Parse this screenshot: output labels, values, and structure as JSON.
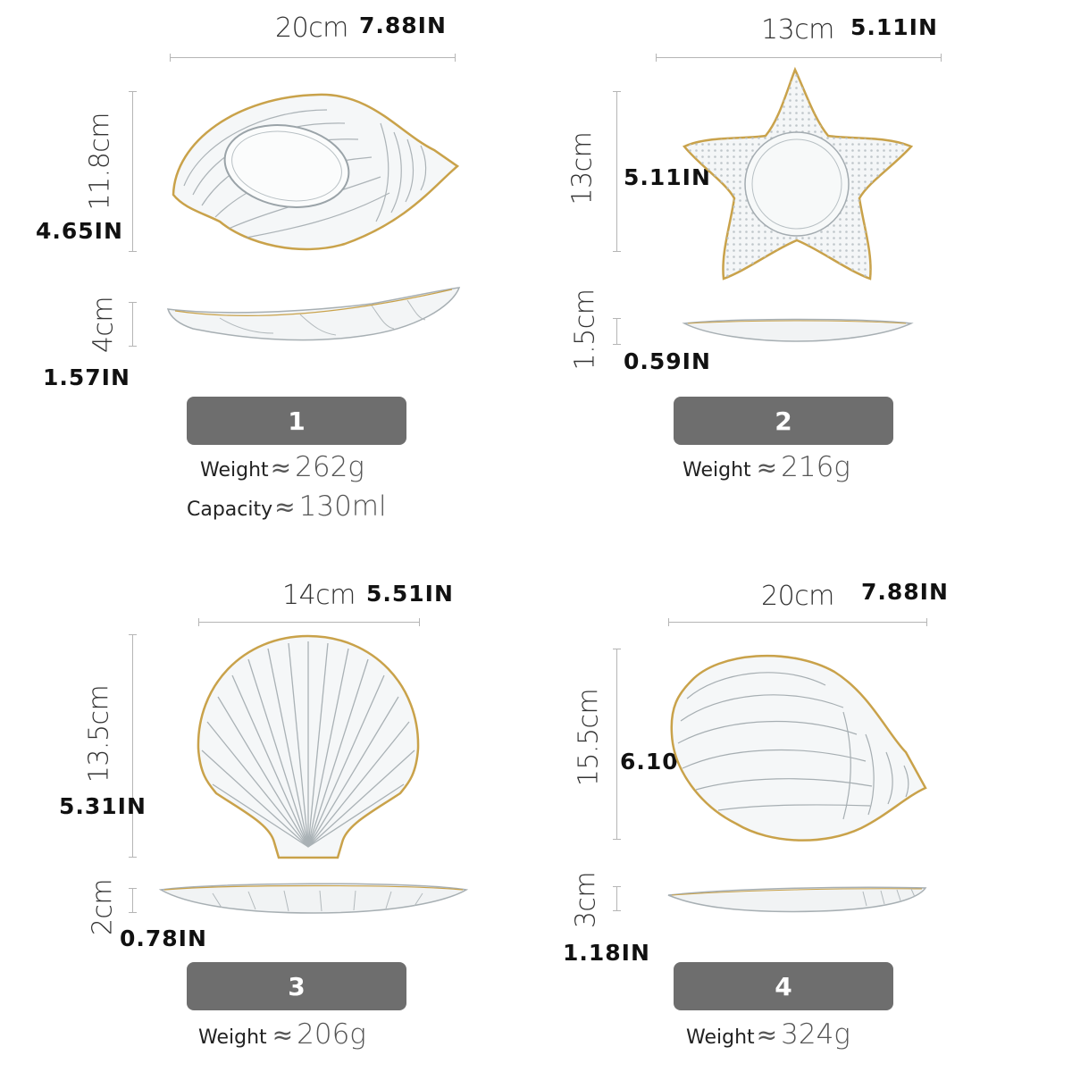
{
  "items": [
    {
      "number": "1",
      "width_cm": "20cm",
      "width_in": "7.88IN",
      "length_cm": "11.8cm",
      "length_in": "4.65IN",
      "height_cm": "4cm",
      "height_in": "1.57IN",
      "specs": [
        {
          "label": "Weight",
          "approx": "≈",
          "value": "262g"
        },
        {
          "label": "Capacity",
          "approx": "≈",
          "value": "130ml"
        }
      ]
    },
    {
      "number": "2",
      "width_cm": "13cm",
      "width_in": "5.11IN",
      "length_cm": "13cm",
      "length_in": "5.11IN",
      "height_cm": "1.5cm",
      "height_in": "0.59IN",
      "specs": [
        {
          "label": "Weight",
          "approx": "≈",
          "value": "216g"
        }
      ]
    },
    {
      "number": "3",
      "width_cm": "14cm",
      "width_in": "5.51IN",
      "length_cm": "13.5cm",
      "length_in": "5.31IN",
      "height_cm": "2cm",
      "height_in": "0.78IN",
      "specs": [
        {
          "label": "Weight",
          "approx": "≈",
          "value": "206g"
        }
      ]
    },
    {
      "number": "4",
      "width_cm": "20cm",
      "width_in": "7.88IN",
      "length_cm": "15.5cm",
      "length_in": "6.10IN",
      "height_cm": "3cm",
      "height_in": "1.18IN",
      "specs": [
        {
          "label": "Weight",
          "approx": "≈",
          "value": "324g"
        }
      ]
    }
  ],
  "colors": {
    "badge": "#6e6e6e",
    "gold_rim": "#c9a24a",
    "glass": "#e9edf0"
  }
}
